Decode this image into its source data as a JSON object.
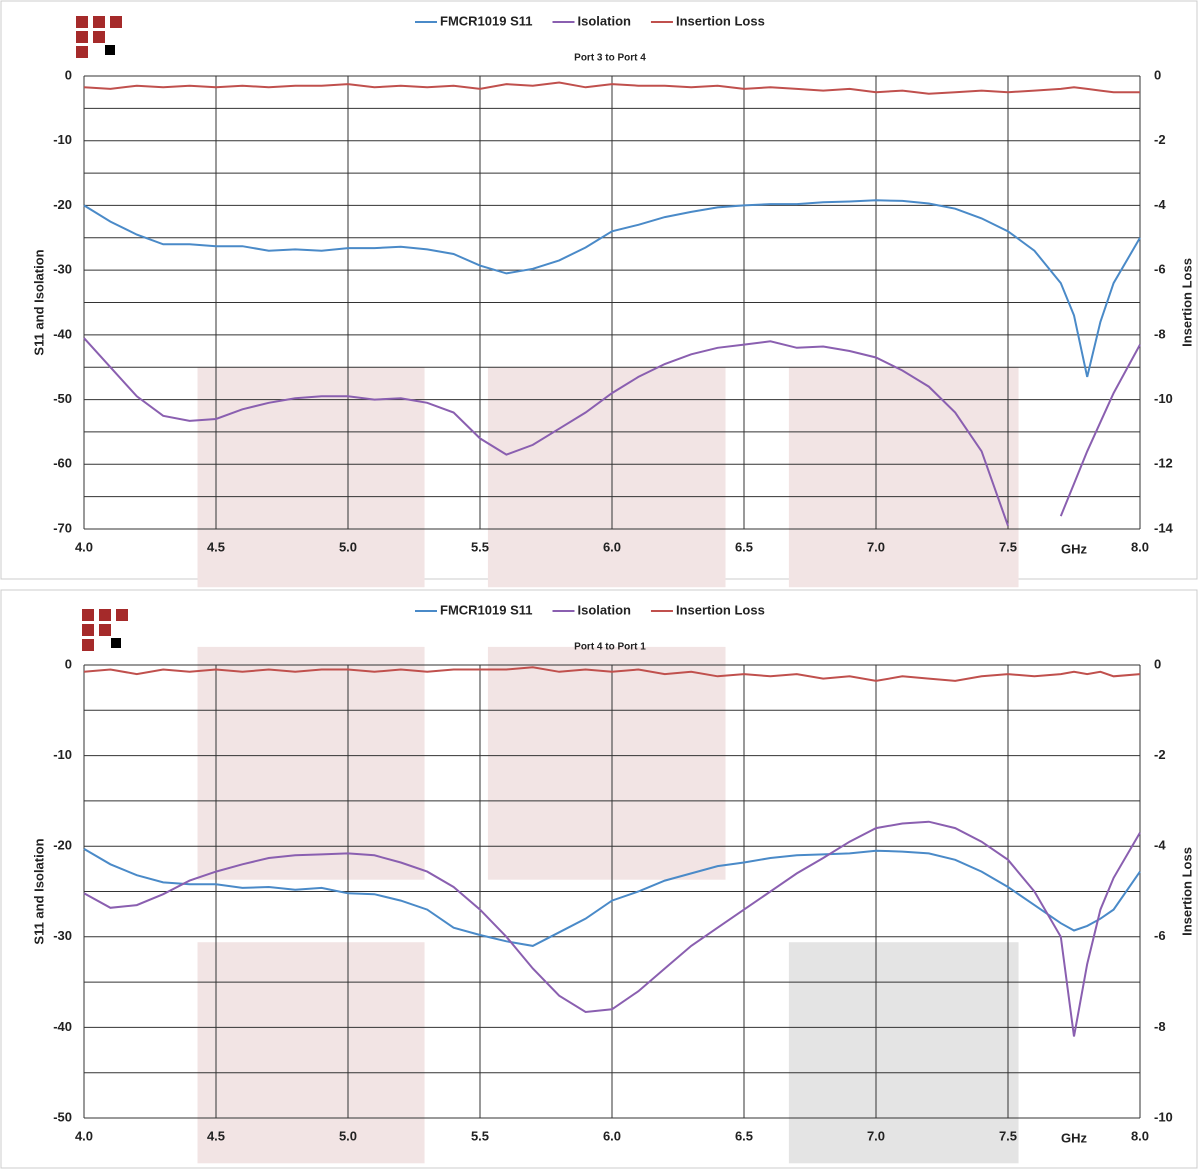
{
  "chart_data": [
    {
      "type": "line",
      "subtitle": "Port 3 to Port 4",
      "ylabel": "S11 and Isolation",
      "y2label": "Insertion Loss",
      "xlabel": "GHz",
      "legend": "top",
      "xlim": [
        4.0,
        8.0
      ],
      "xticks": [
        {
          "value": 4.0,
          "label": "4.0"
        },
        4.5,
        {
          "value": 5.0,
          "label": "5.0"
        },
        5.5,
        {
          "value": 6.0,
          "label": "6.0"
        },
        6.5,
        {
          "value": 7.0,
          "label": "7.0"
        },
        7.5,
        {
          "value": 8.0,
          "label": "8.0"
        }
      ],
      "ylim": [
        -70,
        0
      ],
      "yticks": [
        0,
        -10,
        -20,
        -30,
        -40,
        -50,
        -60,
        -70
      ],
      "yminorticks": [
        -5,
        -15,
        -25,
        -35,
        -45,
        -55,
        -65
      ],
      "y2lim": [
        -14,
        0
      ],
      "y2ticks": [
        0,
        -2,
        -4,
        -6,
        -8,
        -10,
        -12,
        -14
      ],
      "shaded_regions": [
        {
          "x": [
            4.43,
            5.29
          ],
          "y": [
            -45,
            -79
          ],
          "color": "#f2e4e4"
        },
        {
          "x": [
            5.53,
            6.43
          ],
          "y": [
            -45,
            -79
          ],
          "color": "#f2e4e4"
        },
        {
          "x": [
            6.67,
            7.54
          ],
          "y": [
            -45,
            -79
          ],
          "color": "#f2e4e4"
        }
      ],
      "x": [
        4.0,
        4.1,
        4.2,
        4.3,
        4.4,
        4.5,
        4.6,
        4.7,
        4.8,
        4.9,
        5.0,
        5.1,
        5.2,
        5.3,
        5.4,
        5.5,
        5.6,
        5.7,
        5.8,
        5.9,
        6.0,
        6.1,
        6.2,
        6.3,
        6.4,
        6.5,
        6.6,
        6.7,
        6.8,
        6.9,
        7.0,
        7.1,
        7.2,
        7.3,
        7.4,
        7.5,
        7.6,
        7.7,
        7.75,
        7.8,
        7.85,
        7.9,
        8.0
      ],
      "series": [
        {
          "name": "FMCR1019 S11",
          "color": "#4a8ac8",
          "values": [
            -20,
            -22.5,
            -24.5,
            -26,
            -26,
            -26.3,
            -26.3,
            -27,
            -26.8,
            -27,
            -26.6,
            -26.6,
            -26.4,
            -26.8,
            -27.5,
            -29.3,
            -30.5,
            -29.8,
            -28.5,
            -26.5,
            -24,
            -23,
            -21.8,
            -21,
            -20.3,
            -20,
            -19.8,
            -19.8,
            -19.5,
            -19.4,
            -19.2,
            -19.3,
            -19.7,
            -20.5,
            -22,
            -24,
            -27,
            -32,
            -37,
            -46.5,
            -38,
            -32,
            -25
          ]
        },
        {
          "name": "Isolation",
          "color": "#8a5fb0",
          "values": [
            -40.5,
            -45,
            -49.5,
            -52.5,
            -53.3,
            -53,
            -51.5,
            -50.5,
            -49.8,
            -49.5,
            -49.5,
            -50,
            -49.8,
            -50.5,
            -52,
            -56,
            -58.5,
            -57,
            -54.5,
            -52,
            -49,
            -46.5,
            -44.5,
            -43,
            -42,
            -41.5,
            -41,
            -42,
            -41.8,
            -42.5,
            -43.5,
            -45.5,
            -48,
            -52,
            -58,
            -69.5,
            null,
            -68,
            -63,
            -58,
            -53.5,
            -49,
            -41.5
          ]
        },
        {
          "name": "Insertion Loss",
          "color": "#c0504d",
          "axis": "y2",
          "values": [
            -0.35,
            -0.4,
            -0.3,
            -0.35,
            -0.3,
            -0.35,
            -0.3,
            -0.35,
            -0.3,
            -0.3,
            -0.25,
            -0.35,
            -0.3,
            -0.35,
            -0.3,
            -0.4,
            -0.25,
            -0.3,
            -0.2,
            -0.35,
            -0.25,
            -0.3,
            -0.3,
            -0.35,
            -0.3,
            -0.4,
            -0.35,
            -0.4,
            -0.45,
            -0.4,
            -0.5,
            -0.45,
            -0.55,
            -0.5,
            -0.45,
            -0.5,
            -0.45,
            -0.4,
            -0.35,
            -0.4,
            -0.45,
            -0.5,
            -0.5
          ]
        }
      ]
    },
    {
      "type": "line",
      "subtitle": "Port 4 to Port 1",
      "ylabel": "S11 and Isolation",
      "y2label": "Insertion Loss",
      "xlabel": "GHz",
      "legend": "top",
      "xlim": [
        4.0,
        8.0
      ],
      "xticks": [
        {
          "value": 4.0,
          "label": "4.0"
        },
        4.5,
        {
          "value": 5.0,
          "label": "5.0"
        },
        5.5,
        {
          "value": 6.0,
          "label": "6.0"
        },
        6.5,
        {
          "value": 7.0,
          "label": "7.0"
        },
        7.5,
        {
          "value": 8.0,
          "label": "8.0"
        }
      ],
      "ylim": [
        -50,
        0
      ],
      "yticks": [
        0,
        -10,
        -20,
        -30,
        -40,
        -50
      ],
      "yminorticks": [
        -5,
        -15,
        -25,
        -35,
        -45
      ],
      "y2lim": [
        -10,
        0
      ],
      "y2ticks": [
        0,
        -2,
        -4,
        -6,
        -8,
        -10
      ],
      "shaded_regions": [
        {
          "x": [
            4.43,
            5.29
          ],
          "y": [
            2,
            -23.7
          ],
          "color": "#f2e4e4"
        },
        {
          "x": [
            5.53,
            6.43
          ],
          "y": [
            2,
            -23.7
          ],
          "color": "#f2e4e4"
        },
        {
          "x": [
            4.43,
            5.29
          ],
          "y": [
            -30.6,
            -55
          ],
          "color": "#f2e4e4"
        },
        {
          "x": [
            6.67,
            7.54
          ],
          "y": [
            -30.6,
            -55
          ],
          "color": "#e4e4e4"
        }
      ],
      "x": [
        4.0,
        4.1,
        4.2,
        4.3,
        4.4,
        4.5,
        4.6,
        4.7,
        4.8,
        4.9,
        5.0,
        5.1,
        5.2,
        5.3,
        5.4,
        5.5,
        5.6,
        5.7,
        5.8,
        5.9,
        6.0,
        6.1,
        6.2,
        6.3,
        6.4,
        6.5,
        6.6,
        6.7,
        6.8,
        6.9,
        7.0,
        7.1,
        7.2,
        7.3,
        7.4,
        7.5,
        7.6,
        7.7,
        7.75,
        7.8,
        7.85,
        7.9,
        8.0
      ],
      "series": [
        {
          "name": "FMCR1019 S11",
          "color": "#4a8ac8",
          "values": [
            -20.3,
            -22,
            -23.2,
            -24,
            -24.2,
            -24.2,
            -24.6,
            -24.5,
            -24.8,
            -24.6,
            -25.2,
            -25.3,
            -26,
            -27,
            -29,
            -29.8,
            -30.5,
            -31,
            -29.5,
            -28,
            -26,
            -25,
            -23.8,
            -23,
            -22.2,
            -21.8,
            -21.3,
            -21,
            -20.9,
            -20.8,
            -20.5,
            -20.6,
            -20.8,
            -21.5,
            -22.8,
            -24.5,
            -26.5,
            -28.5,
            -29.3,
            -28.8,
            -28,
            -27,
            -22.8
          ]
        },
        {
          "name": "Isolation",
          "color": "#8a5fb0",
          "values": [
            -25.2,
            -26.8,
            -26.5,
            -25.3,
            -23.8,
            -22.8,
            -22,
            -21.3,
            -21,
            -20.9,
            -20.8,
            -21,
            -21.8,
            -22.8,
            -24.5,
            -27,
            -30,
            -33.5,
            -36.5,
            -38.3,
            -38,
            -36,
            -33.5,
            -31,
            -29,
            -27,
            -25,
            -23,
            -21.3,
            -19.5,
            -18,
            -17.5,
            -17.3,
            -18,
            -19.5,
            -21.5,
            -25,
            -30,
            -41,
            -33,
            -27,
            -23.5,
            -18.5
          ]
        },
        {
          "name": "Insertion Loss",
          "color": "#c0504d",
          "axis": "y2",
          "values": [
            -0.15,
            -0.1,
            -0.2,
            -0.1,
            -0.15,
            -0.1,
            -0.15,
            -0.1,
            -0.15,
            -0.1,
            -0.1,
            -0.15,
            -0.1,
            -0.15,
            -0.1,
            -0.1,
            -0.1,
            -0.05,
            -0.15,
            -0.1,
            -0.15,
            -0.1,
            -0.2,
            -0.15,
            -0.25,
            -0.2,
            -0.25,
            -0.2,
            -0.3,
            -0.25,
            -0.35,
            -0.25,
            -0.3,
            -0.35,
            -0.25,
            -0.2,
            -0.25,
            -0.2,
            -0.15,
            -0.2,
            -0.15,
            -0.25,
            -0.2
          ]
        }
      ]
    }
  ]
}
